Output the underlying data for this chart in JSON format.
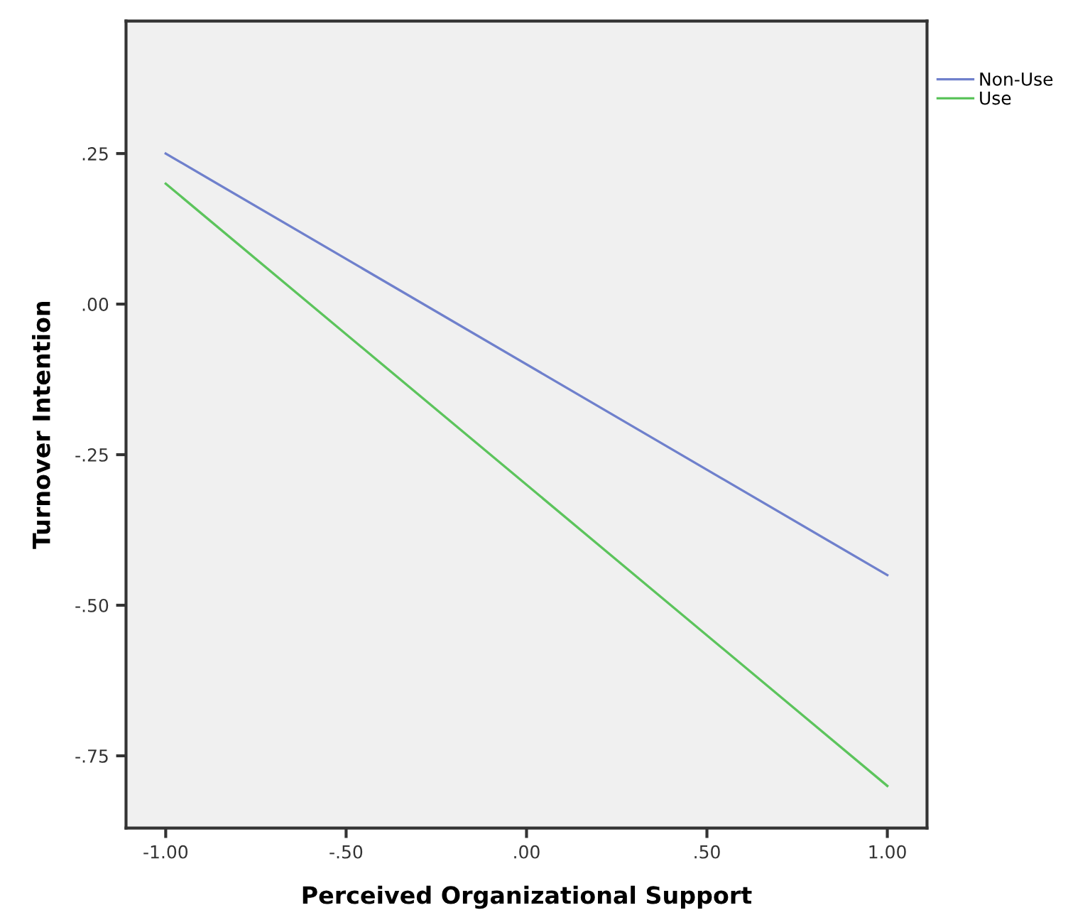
{
  "chart_data": {
    "type": "line",
    "xlabel": "Perceived Organizational Support",
    "ylabel": "Turnover Intention",
    "x": [
      -1.0,
      1.0
    ],
    "series": [
      {
        "name": "Non-Use",
        "color": "#6f80cc",
        "values": [
          0.25,
          -0.45
        ]
      },
      {
        "name": "Use",
        "color": "#5cc45c",
        "values": [
          0.2,
          -0.8
        ]
      }
    ],
    "xlim": [
      -1.11,
      1.11
    ],
    "xticks": [
      {
        "value": -1.0,
        "label": "-1.00"
      },
      {
        "value": -0.5,
        "label": "-.50"
      },
      {
        "value": 0,
        "label": ".00"
      },
      {
        "value": 0.5,
        "label": ".50"
      },
      {
        "value": 1.0,
        "label": "1.00"
      }
    ],
    "ylim": [
      -0.87,
      0.47
    ],
    "yticks": [
      {
        "value": 0.25,
        "label": ".25"
      },
      {
        "value": 0,
        "label": ".00"
      },
      {
        "value": -0.25,
        "label": "-.25"
      },
      {
        "value": -0.5,
        "label": "-.50"
      },
      {
        "value": -0.75,
        "label": "-.75"
      }
    ],
    "grid": false,
    "legend": "top right",
    "marker": "none",
    "line_style": "solid"
  }
}
